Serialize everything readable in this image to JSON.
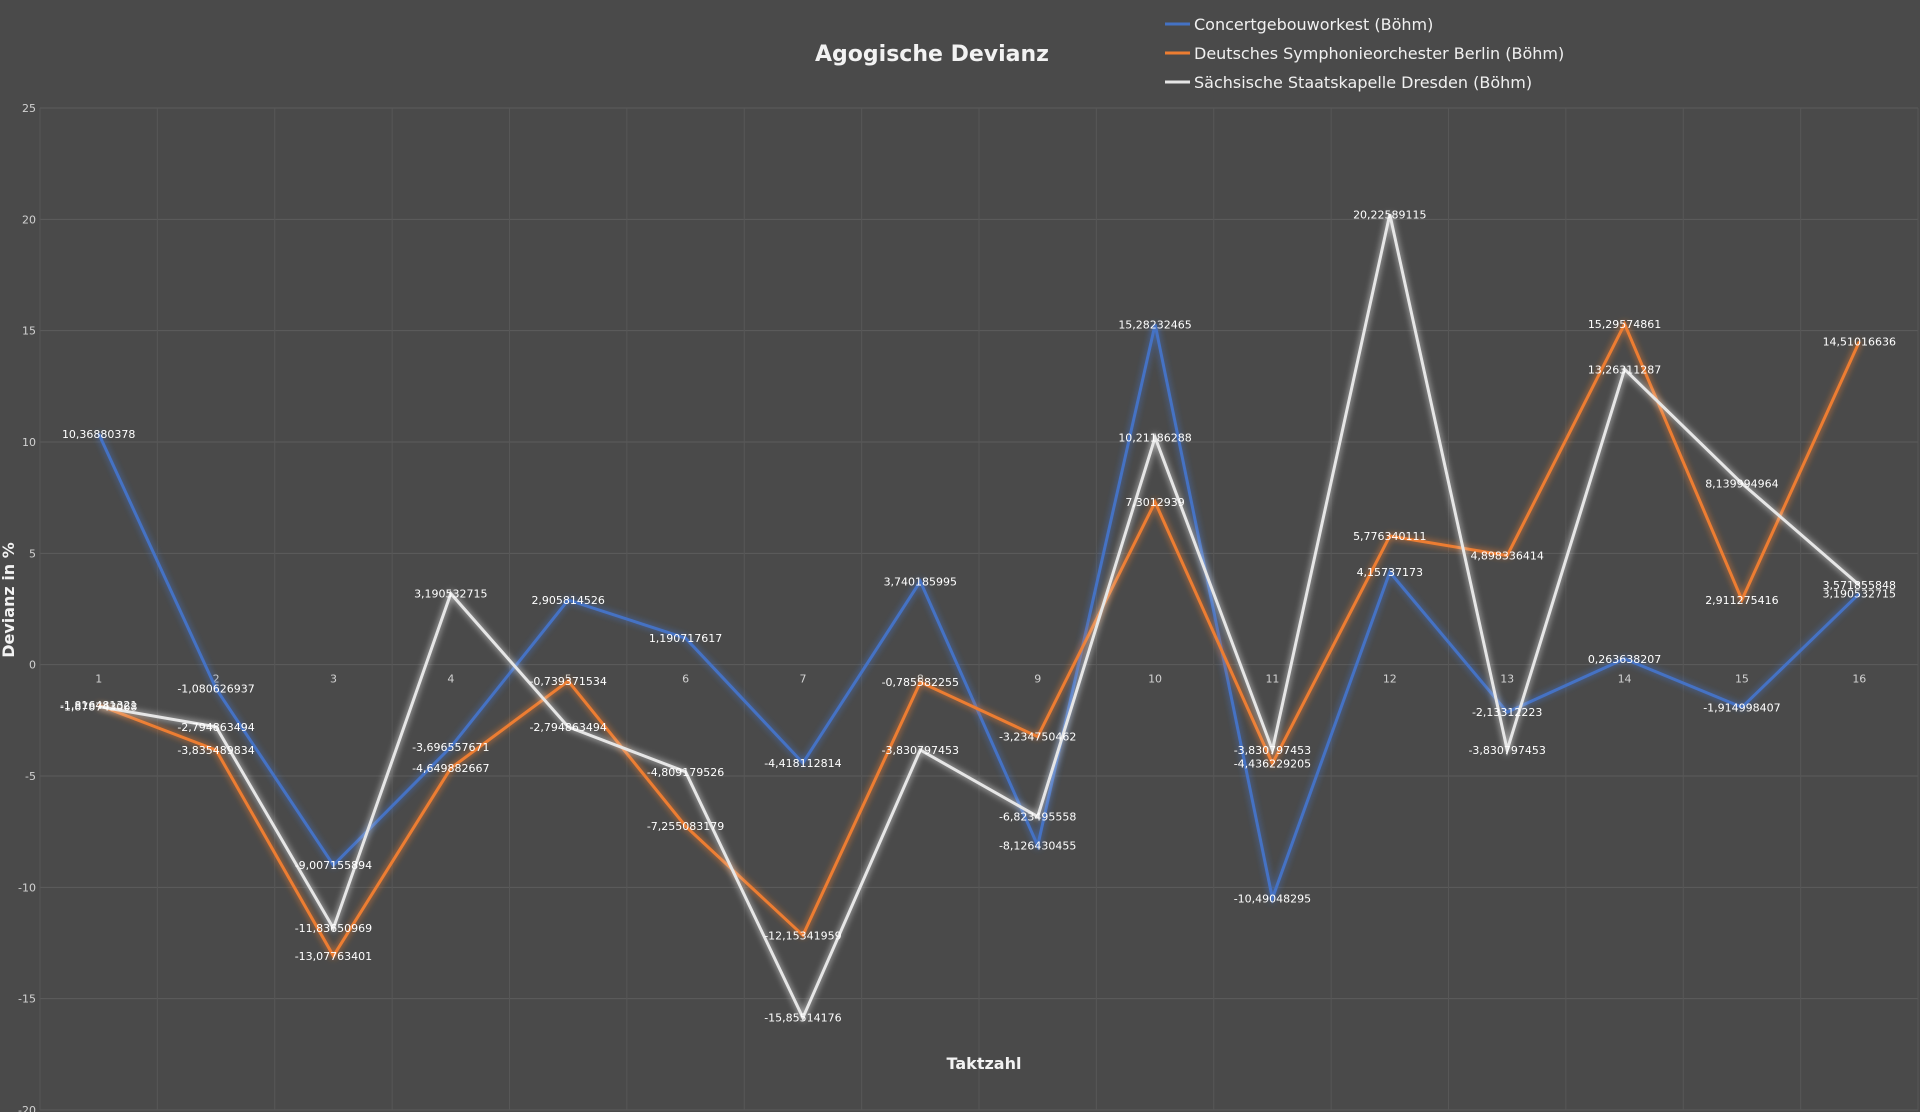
{
  "chart_data": {
    "type": "line",
    "title": "Agogische Devianz",
    "xlabel": "Taktzahl",
    "ylabel": "Devianz in %",
    "categories": [
      "1",
      "2",
      "3",
      "4",
      "5",
      "6",
      "7",
      "8",
      "9",
      "10",
      "11",
      "12",
      "13",
      "14",
      "15",
      "16"
    ],
    "ylim": [
      -20,
      25
    ],
    "yticks": [
      "-20",
      "-15",
      "-10",
      "-5",
      "0",
      "5",
      "10",
      "15",
      "20",
      "25"
    ],
    "grid": true,
    "legend_position": "top-right",
    "series": [
      {
        "name": "Concertgebouworkest (Böhm)",
        "color": "#4472c4",
        "values": [
          10.36880378,
          -1.080626937,
          -9.007155894,
          -3.696557671,
          2.905814526,
          1.190717617,
          -4.418112814,
          3.740185995,
          -8.126430455,
          15.28232465,
          -10.49048295,
          4.15737173,
          -2.13312223,
          0.263638207,
          -1.914998407,
          3.190532715
        ],
        "labels": [
          "10,36880378",
          "-1,080626937",
          "-9,007155894",
          "-3,696557671",
          "2,905814526",
          "1,190717617",
          "-4,418112814",
          "3,740185995",
          "-8,126430455",
          "15,28232465",
          "-10,49048295",
          "4,15737173",
          "-2,13312223",
          "0,263638207",
          "-1,914998407",
          "3,190532715"
        ]
      },
      {
        "name": "Deutsches Symphonieorchester Berlin (Böhm)",
        "color": "#ed7d31",
        "values": [
          -1.816481321,
          -3.835489834,
          -13.07763401,
          -4.649882667,
          -0.739371534,
          -7.255083179,
          -12.15341959,
          -0.785582255,
          -3.234750462,
          7.3012939,
          -4.436229205,
          5.776340111,
          4.898336414,
          15.29574861,
          2.911275416,
          14.51016636
        ],
        "labels": [
          "-1,816481321",
          "-3,835489834",
          "-13,07763401",
          "-4,649882667",
          "-0,739371534",
          "-7,255083179",
          "-12,15341959",
          "-0,785582255",
          "-3,234750462",
          "7,3012939",
          "-4,436229205",
          "5,776340111",
          "4,898336414",
          "15,29574861",
          "2,911275416",
          "14,51016636"
        ]
      },
      {
        "name": "Sächsische Staatskapelle Dresden (Böhm)",
        "color": "#e6e6e6",
        "values": [
          -1.878743068,
          -2.794863494,
          -11.83650969,
          3.190532715,
          -2.794863494,
          -4.809179526,
          -15.85514176,
          -3.830797453,
          -6.823495558,
          10.21186288,
          -3.830797453,
          20.22589115,
          -3.830797453,
          13.26311287,
          8.139994964,
          3.571855848
        ],
        "labels": [
          "-1,878743068",
          "-2,794863494",
          "-11,83650969",
          "3,190532715",
          "-2,794863494",
          "-4,809179526",
          "-15,85514176",
          "-3,830797453",
          "-6,823495558",
          "10,21186288",
          "-3,830797453",
          "20,22589115",
          "-3,830797453",
          "13,26311287",
          "8,139994964",
          "3,571855848"
        ]
      }
    ]
  }
}
